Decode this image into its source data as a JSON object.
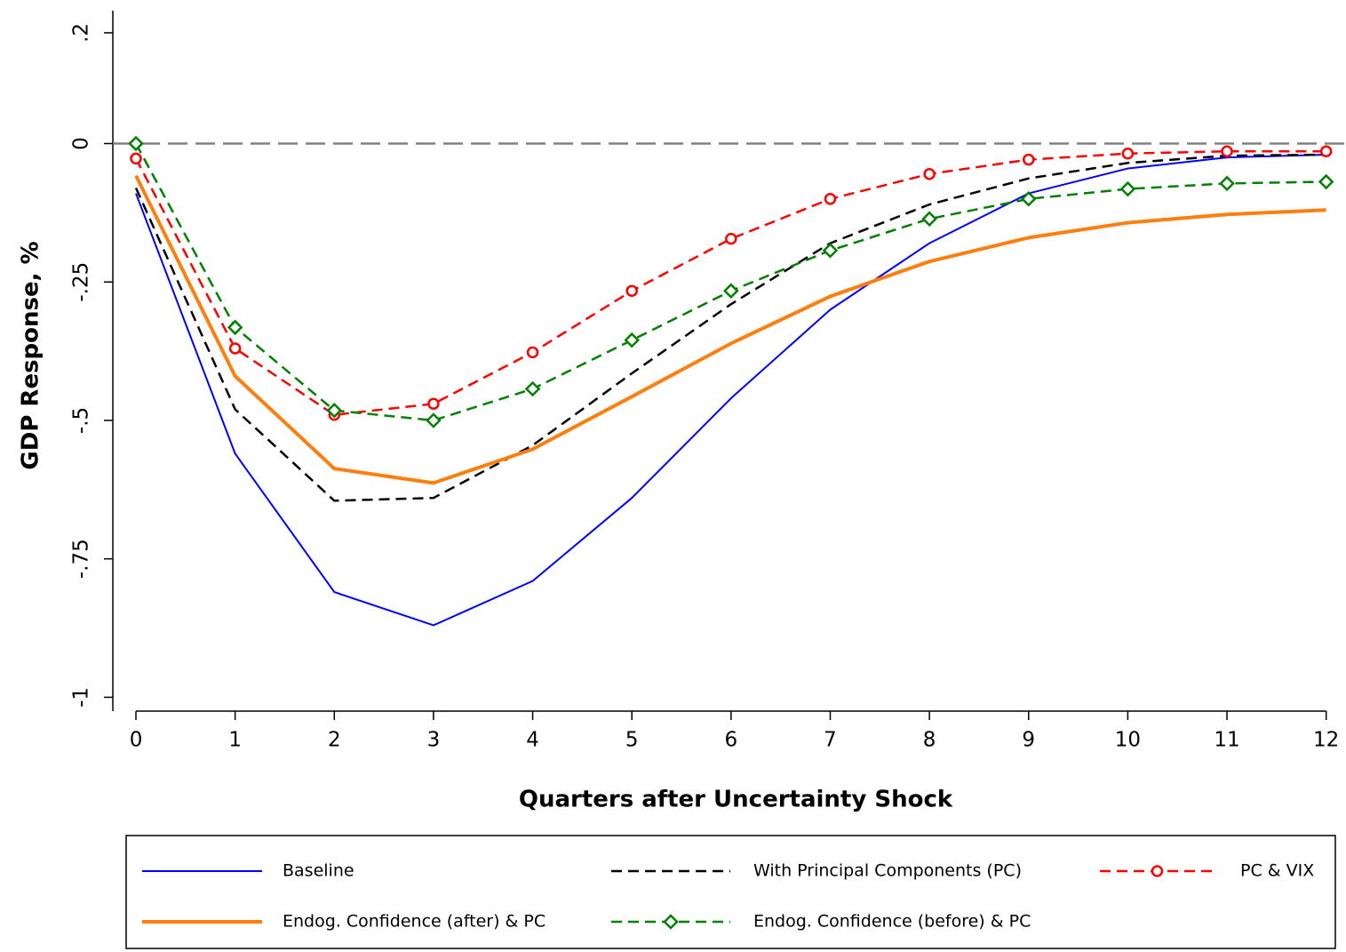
{
  "chart_data": {
    "type": "line",
    "x_label": "Quarters after Uncertainty Shock",
    "y_label": "GDP Response, %",
    "x": [
      0,
      1,
      2,
      3,
      4,
      5,
      6,
      7,
      8,
      9,
      10,
      11,
      12
    ],
    "xlim": [
      -0.233,
      12.2
    ],
    "xticks": [
      0,
      1,
      2,
      3,
      4,
      5,
      6,
      7,
      8,
      9,
      10,
      11,
      12
    ],
    "ylim": [
      -1.025,
      0.24
    ],
    "yticks": [
      {
        "value": 0.2,
        "label": ".2"
      },
      0,
      {
        "value": -0.25,
        "label": "-.25"
      },
      {
        "value": -0.5,
        "label": "-.5"
      },
      {
        "value": -0.75,
        "label": "-.75"
      },
      {
        "value": -1,
        "label": "-1"
      }
    ],
    "reference_line": 0,
    "series": [
      {
        "name": "Baseline",
        "color": "#0000ff",
        "dashed": false,
        "marker": "none",
        "width": 2,
        "values": [
          -0.09,
          -0.56,
          -0.81,
          -0.87,
          -0.79,
          -0.64,
          -0.46,
          -0.3,
          -0.18,
          -0.09,
          -0.045,
          -0.025,
          -0.02
        ]
      },
      {
        "name": "With Principal Components (PC)",
        "color": "#000000",
        "dashed": true,
        "marker": "none",
        "width": 2.5,
        "values": [
          -0.08,
          -0.48,
          -0.645,
          -0.64,
          -0.545,
          -0.415,
          -0.29,
          -0.18,
          -0.11,
          -0.063,
          -0.035,
          -0.022,
          -0.02
        ]
      },
      {
        "name": "PC & VIX",
        "color": "#ff0000",
        "dashed": true,
        "marker": "circle",
        "width": 2.5,
        "values": [
          -0.027,
          -0.37,
          -0.49,
          -0.47,
          -0.377,
          -0.266,
          -0.172,
          -0.1,
          -0.055,
          -0.029,
          -0.018,
          -0.014,
          -0.014
        ]
      },
      {
        "name": "Endog. Confidence (after) & PC",
        "color": "#ff7f0e",
        "dashed": false,
        "marker": "none",
        "width": 4,
        "values": [
          -0.058,
          -0.42,
          -0.587,
          -0.613,
          -0.552,
          -0.457,
          -0.361,
          -0.276,
          -0.213,
          -0.17,
          -0.143,
          -0.128,
          -0.12
        ]
      },
      {
        "name": "Endog. Confidence (before) & PC",
        "color": "#008000",
        "dashed": true,
        "marker": "diamond",
        "width": 2.5,
        "values": [
          0.0,
          -0.332,
          -0.482,
          -0.5,
          -0.443,
          -0.355,
          -0.266,
          -0.193,
          -0.136,
          -0.1,
          -0.082,
          -0.072,
          -0.069
        ]
      }
    ]
  }
}
